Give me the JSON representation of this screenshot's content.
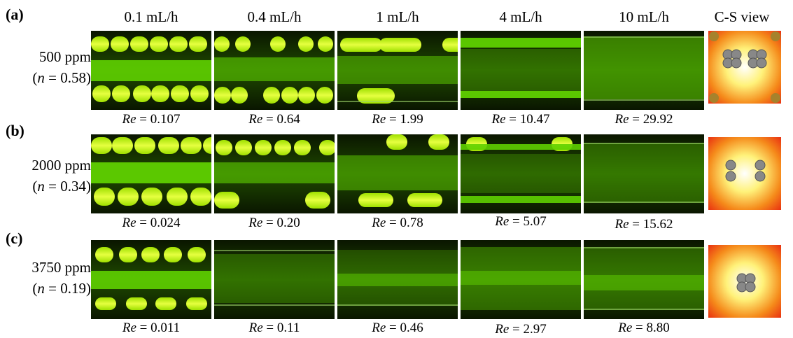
{
  "columns": [
    "0.1 mL/h",
    "0.4 mL/h",
    "1 mL/h",
    "4 mL/h",
    "10 mL/h",
    "C-S view"
  ],
  "rows": [
    {
      "tag": "(a)",
      "conc": "500 ppm",
      "n_label": "n",
      "n_value": " = 0.58)",
      "re_label": "Re",
      "re": [
        " = 0.107",
        " = 0.64",
        " = 1.99",
        " = 10.47",
        " = 29.92"
      ]
    },
    {
      "tag": "(b)",
      "conc": "2000 ppm",
      "n_label": "n",
      "n_value": " = 0.34)",
      "re_label": "Re",
      "re": [
        " = 0.024",
        " = 0.20",
        " = 0.78",
        " = 5.07",
        " = 15.62"
      ]
    },
    {
      "tag": "(c)",
      "conc": "3750 ppm",
      "n_label": "n",
      "n_value": " = 0.19)",
      "re_label": "Re",
      "re": [
        " = 0.011",
        " = 0.11",
        " = 0.46",
        " = 2.97",
        " = 8.80"
      ]
    }
  ],
  "colors": {
    "bead": "#c8f000",
    "stream": "#5fd000",
    "dark": "#0c1a00",
    "cs_red": "#e82a10",
    "cs_yellow": "#fff27a",
    "particle": "#888888"
  }
}
